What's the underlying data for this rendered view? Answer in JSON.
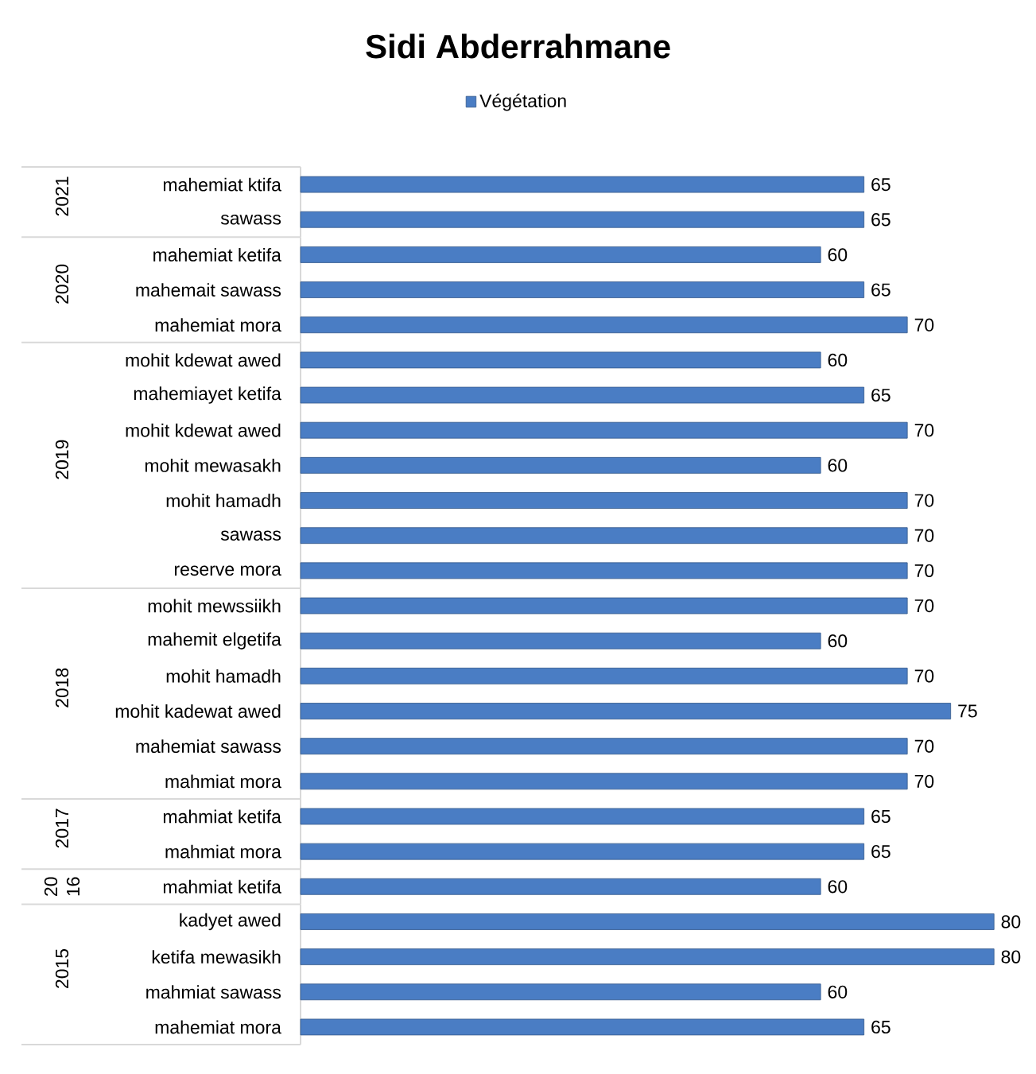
{
  "chart_data": [
    {
      "type": "bar",
      "orientation": "horizontal",
      "title": "Sidi Abderrahmane",
      "legend": "top",
      "ylabel": "2021",
      "data_labels": true,
      "categories": [
        "mahemiat ktifa",
        "sawass"
      ],
      "series": [
        {
          "name": "Végétation",
          "color": "#4a7dc4",
          "values": [
            65,
            65
          ]
        }
      ]
    },
    {
      "type": "bar",
      "orientation": "horizontal",
      "ylabel": "2020",
      "data_labels": true,
      "categories": [
        "mahemiat ketifa",
        "mahemait sawass",
        "mahemiat mora"
      ],
      "series": [
        {
          "color": "#4a7dc4",
          "values": [
            60,
            65,
            70
          ]
        }
      ]
    },
    {
      "type": "bar",
      "orientation": "horizontal",
      "ylabel": "2019",
      "data_labels": true,
      "categories": [
        "mohit kdewat awed",
        "mahemiayet ketifa",
        "mohit kdewat awed",
        "mohit mewasakh",
        "mohit hamadh",
        "sawass",
        "reserve mora"
      ],
      "series": [
        {
          "color": "#4a7dc4",
          "values": [
            60,
            65,
            70,
            60,
            70,
            70,
            70
          ]
        }
      ]
    },
    {
      "type": "bar",
      "orientation": "horizontal",
      "ylabel": "2018",
      "data_labels": true,
      "categories": [
        "mohit mewssiikh",
        "mahemit elgetifa",
        "mohit hamadh",
        "mohit kadewat awed",
        "mahemiat sawass",
        "mahmiat mora"
      ],
      "series": [
        {
          "color": "#4a7dc4",
          "values": [
            70,
            60,
            70,
            75,
            70,
            70
          ]
        }
      ]
    },
    {
      "type": "bar",
      "orientation": "horizontal",
      "ylabel": "2017",
      "data_labels": true,
      "categories": [
        "mahmiat ketifa",
        "mahmiat mora"
      ],
      "series": [
        {
          "color": "#4a7dc4",
          "values": [
            65,
            65
          ]
        }
      ]
    },
    {
      "type": "bar",
      "orientation": "horizontal",
      "ylabel": "20 16",
      "data_labels": true,
      "categories": [
        "mahmiat ketifa"
      ],
      "series": [
        {
          "color": "#4a7dc4",
          "values": [
            60
          ]
        }
      ]
    },
    {
      "type": "bar",
      "orientation": "horizontal",
      "ylabel": "2015",
      "data_labels": true,
      "categories": [
        "kadyet awed",
        "ketifa mewasikh",
        "mahmiat sawass",
        "mahemiat mora"
      ],
      "series": [
        {
          "color": "#4a7dc4",
          "values": [
            80,
            80,
            60,
            65
          ]
        }
      ]
    }
  ]
}
